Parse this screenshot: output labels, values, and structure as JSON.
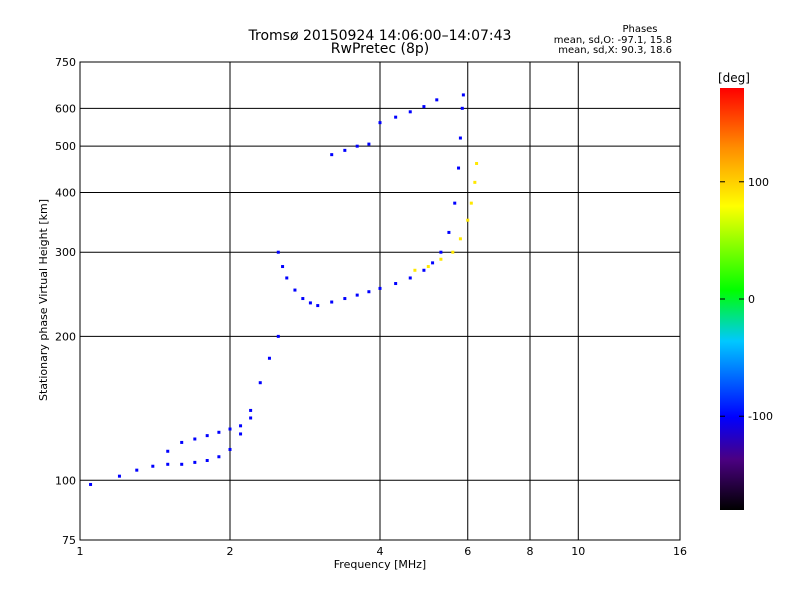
{
  "chart_data": {
    "type": "scatter",
    "title": "Tromsø 20150924 14:06:00–14:07:43",
    "subtitle": "RwPretec (8p)",
    "xlabel": "Frequency [MHz]",
    "ylabel": "Stationary phase Virtual Height [km]",
    "x_scale": "log",
    "y_scale": "log",
    "xlim": [
      1,
      16
    ],
    "ylim": [
      75,
      750
    ],
    "x_ticks": [
      1,
      2,
      4,
      6,
      8,
      10,
      16
    ],
    "y_ticks": [
      75,
      100,
      200,
      300,
      400,
      500,
      600,
      750
    ],
    "grid": true,
    "phases_info": {
      "title": "Phases",
      "line1": "mean, sd,O: -97.1, 15.8",
      "line2": "mean, sd,X:  90.3, 18.6"
    },
    "colorbar": {
      "label": "[deg]",
      "range": [
        -180,
        180
      ],
      "ticks": [
        100,
        0,
        -100
      ]
    },
    "traces": [
      {
        "kind": "o-mode low",
        "phase": -100,
        "points": [
          [
            1.05,
            98
          ],
          [
            1.2,
            102
          ],
          [
            1.3,
            105
          ],
          [
            1.4,
            107
          ],
          [
            1.5,
            108
          ],
          [
            1.6,
            108
          ],
          [
            1.7,
            109
          ],
          [
            1.8,
            110
          ],
          [
            1.9,
            112
          ],
          [
            2.0,
            116
          ],
          [
            2.1,
            125
          ],
          [
            2.2,
            140
          ],
          [
            2.3,
            160
          ],
          [
            2.4,
            180
          ],
          [
            2.5,
            200
          ]
        ]
      },
      {
        "kind": "o-mode mid",
        "phase": -100,
        "points": [
          [
            1.5,
            115
          ],
          [
            1.6,
            120
          ],
          [
            1.7,
            122
          ],
          [
            1.8,
            124
          ],
          [
            1.9,
            126
          ],
          [
            2.0,
            128
          ],
          [
            2.1,
            130
          ],
          [
            2.2,
            135
          ]
        ]
      },
      {
        "kind": "F-layer trace",
        "phase": -100,
        "points": [
          [
            2.5,
            300
          ],
          [
            2.55,
            280
          ],
          [
            2.6,
            265
          ],
          [
            2.7,
            250
          ],
          [
            2.8,
            240
          ],
          [
            2.9,
            235
          ],
          [
            3.0,
            232
          ],
          [
            3.2,
            236
          ],
          [
            3.4,
            240
          ],
          [
            3.6,
            244
          ],
          [
            3.8,
            248
          ],
          [
            4.0,
            252
          ],
          [
            4.3,
            258
          ],
          [
            4.6,
            265
          ],
          [
            4.9,
            275
          ],
          [
            5.1,
            285
          ],
          [
            5.3,
            300
          ],
          [
            5.5,
            330
          ],
          [
            5.65,
            380
          ],
          [
            5.75,
            450
          ],
          [
            5.8,
            520
          ],
          [
            5.85,
            600
          ],
          [
            5.88,
            640
          ]
        ]
      },
      {
        "kind": "upper trace",
        "phase": -100,
        "points": [
          [
            3.2,
            480
          ],
          [
            3.4,
            490
          ],
          [
            3.6,
            500
          ],
          [
            3.8,
            505
          ]
        ]
      },
      {
        "kind": "oblique trace",
        "phase": -100,
        "points": [
          [
            4.0,
            560
          ],
          [
            4.3,
            575
          ],
          [
            4.6,
            590
          ],
          [
            4.9,
            605
          ],
          [
            5.2,
            625
          ]
        ]
      },
      {
        "kind": "x-mode trace",
        "phase": 90,
        "points": [
          [
            4.7,
            275
          ],
          [
            5.0,
            280
          ],
          [
            5.3,
            290
          ],
          [
            5.6,
            300
          ],
          [
            5.8,
            320
          ],
          [
            6.0,
            350
          ],
          [
            6.1,
            380
          ],
          [
            6.2,
            420
          ],
          [
            6.25,
            460
          ]
        ]
      }
    ]
  }
}
